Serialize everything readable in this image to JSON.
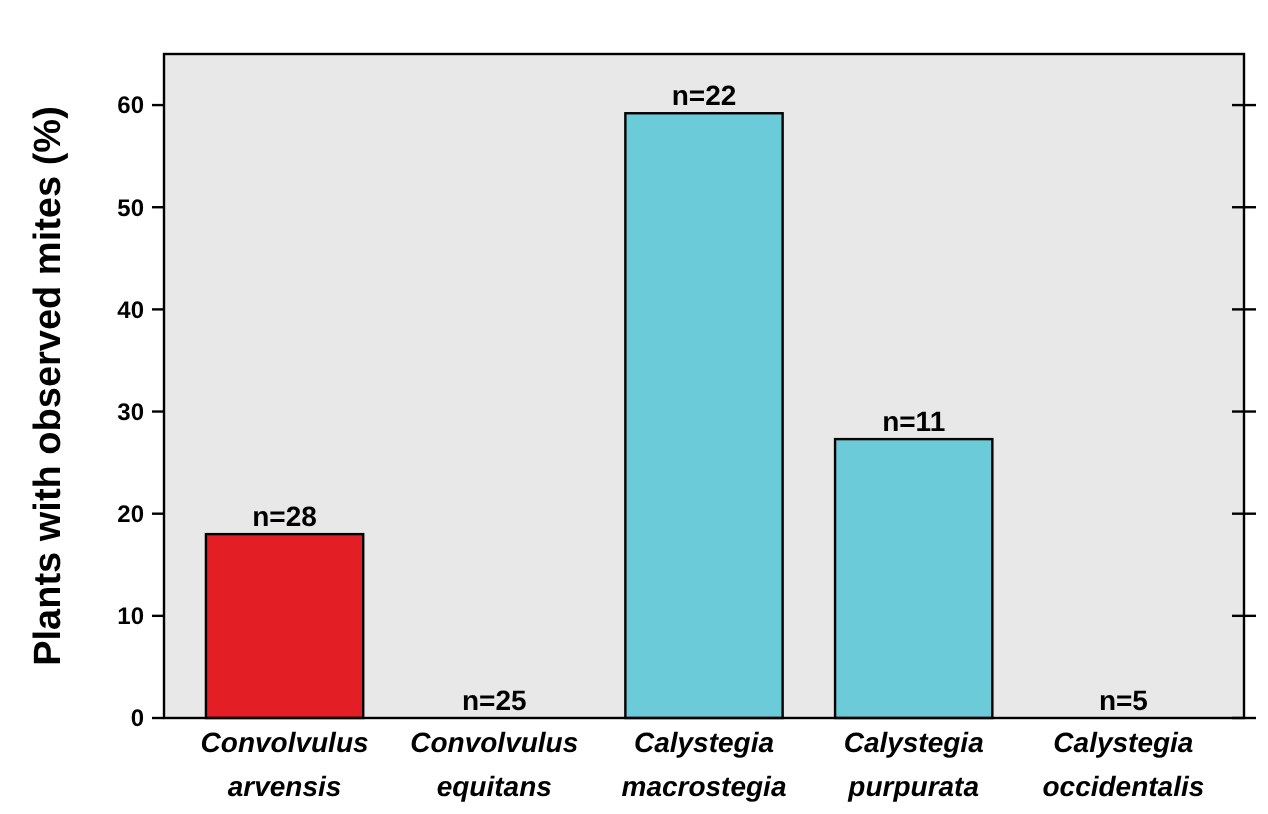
{
  "chart_data": {
    "type": "bar",
    "ylabel": "Plants with observed mites (%)",
    "categories": [
      "Convolvulus arvensis",
      "Convolvulus equitans",
      "Calystegia macrostegia",
      "Calystegia purpurata",
      "Calystegia occidentalis"
    ],
    "values": [
      18,
      0,
      59.2,
      27.3,
      0
    ],
    "colors": [
      "#e31e24",
      "#6ccbd9",
      "#6ccbd9",
      "#6ccbd9",
      "#6ccbd9"
    ],
    "annotations": [
      {
        "text": "n=28",
        "x": "Convolvulus arvensis",
        "y": 18
      },
      {
        "text": "n=25",
        "x": "Convolvulus equitans",
        "y": 0
      },
      {
        "text": "n=22",
        "x": "Calystegia macrostegia",
        "y": 59.2
      },
      {
        "text": "n=11",
        "x": "Calystegia purpurata",
        "y": 27.3
      },
      {
        "text": "n=5",
        "x": "Calystegia occidentalis",
        "y": 0
      }
    ],
    "ylim": [
      0,
      65
    ],
    "yticks": [
      0,
      10,
      20,
      30,
      40,
      50,
      60
    ],
    "tick_labels": "y"
  }
}
